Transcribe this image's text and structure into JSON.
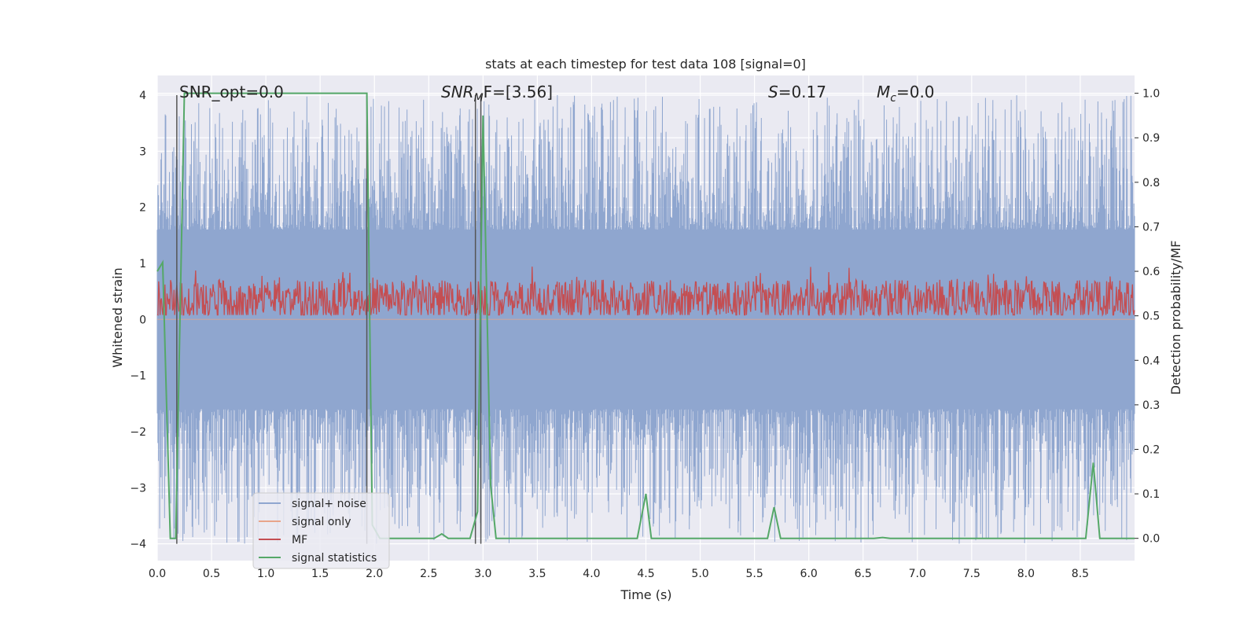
{
  "chart_data": {
    "type": "line",
    "title": "stats at each timestep for test data 108 [signal=0]",
    "xlabel": "Time (s)",
    "ylabel_left": "Whitened strain",
    "ylabel_right": "Detection probability/MF",
    "xlim": [
      0.0,
      9.0
    ],
    "ylim_left": [
      -4.3,
      4.35
    ],
    "ylim_right": [
      -0.05,
      1.04
    ],
    "x_ticks": [
      "0.0",
      "0.5",
      "1.0",
      "1.5",
      "2.0",
      "2.5",
      "3.0",
      "3.5",
      "4.0",
      "4.5",
      "5.0",
      "5.5",
      "6.0",
      "6.5",
      "7.0",
      "7.5",
      "8.0",
      "8.5"
    ],
    "y_left_ticks": [
      "4",
      "3",
      "2",
      "1",
      "0",
      "−1",
      "−2",
      "−3",
      "−4"
    ],
    "y_right_ticks": [
      "1.0",
      "0.9",
      "0.8",
      "0.7",
      "0.6",
      "0.5",
      "0.4",
      "0.3",
      "0.2",
      "0.1",
      "0.0"
    ],
    "annotations": {
      "snr_opt": "SNR_opt=0.0",
      "snr_mf_main": "SNR",
      "snr_mf_sub": "M",
      "snr_mf_rest": "F=[3.56]",
      "s_label": "S",
      "s_value": "=0.17",
      "mc_main": "M",
      "mc_sub": "c",
      "mc_value": "=0.0"
    },
    "legend": {
      "placement": "lower-left",
      "entries": [
        {
          "label": "signal+ noise",
          "color": "#8fa6cf"
        },
        {
          "label": "signal only",
          "color": "#e8a58a"
        },
        {
          "label": "MF",
          "color": "#c44e52"
        },
        {
          "label": "signal statistics",
          "color": "#55a868"
        }
      ]
    },
    "series": [
      {
        "name": "signal statistics",
        "axis": "right",
        "color": "#55a868",
        "x": [
          0.0,
          0.05,
          0.12,
          0.17,
          0.25,
          0.3,
          1.93,
          1.98,
          2.05,
          2.1,
          2.55,
          2.62,
          2.68,
          2.88,
          2.95,
          3.0,
          3.07,
          3.12,
          4.42,
          4.5,
          4.55,
          5.62,
          5.68,
          5.74,
          6.6,
          6.68,
          6.75,
          8.55,
          8.62,
          8.68,
          9.0
        ],
        "y": [
          0.6,
          0.62,
          0.0,
          0.0,
          1.0,
          1.0,
          1.0,
          0.03,
          0.0,
          0.0,
          0.0,
          0.01,
          0.0,
          0.0,
          0.06,
          0.95,
          0.12,
          0.0,
          0.0,
          0.1,
          0.0,
          0.0,
          0.07,
          0.0,
          0.0,
          0.002,
          0.0,
          0.0,
          0.17,
          0.0,
          0.0
        ]
      },
      {
        "name": "MF",
        "axis": "left",
        "color": "#c44e52",
        "band": [
          0.08,
          0.95
        ],
        "center": 0.35
      },
      {
        "name": "signal+ noise",
        "axis": "left",
        "color": "#8fa6cf",
        "band": [
          -4.0,
          4.0
        ],
        "core": [
          -1.6,
          1.6
        ]
      },
      {
        "name": "signal only",
        "axis": "left",
        "color": "#e8a58a",
        "y_constant": 0.0
      }
    ],
    "vertical_markers": [
      0.18,
      1.93,
      2.93,
      2.98
    ],
    "marker_color": "#555555",
    "grid": true,
    "background": "#eaeaf2"
  }
}
